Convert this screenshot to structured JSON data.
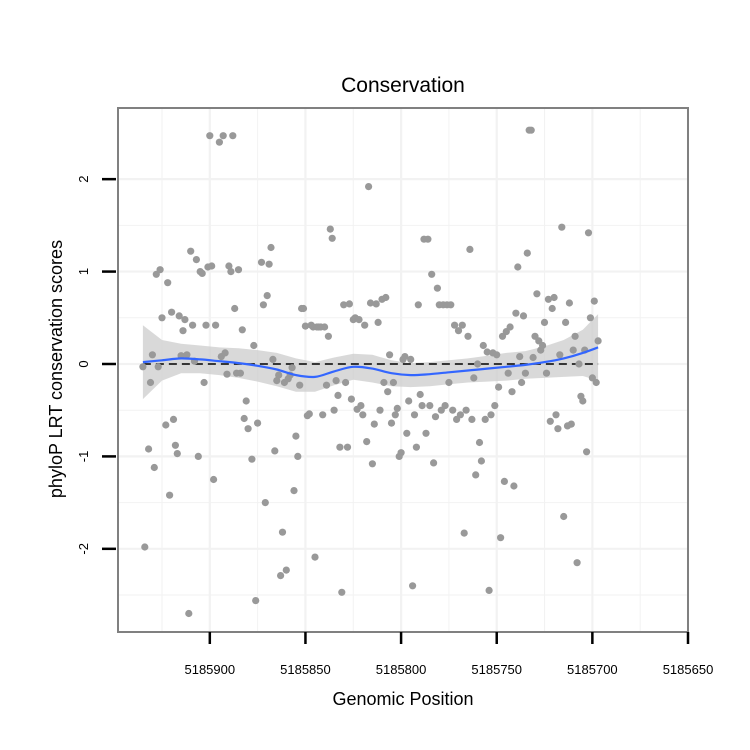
{
  "chart_data": {
    "type": "scatter",
    "title": "Conservation",
    "xlabel": "Genomic Position",
    "ylabel": "phyloP LRT conservation scores",
    "x_reversed": true,
    "xlim": [
      5185650,
      5185948
    ],
    "ylim": [
      -2.9,
      2.77
    ],
    "x_ticks": [
      5185900,
      5185850,
      5185800,
      5185750,
      5185700,
      5185650
    ],
    "x_tick_labels": [
      "5185900",
      "5185850",
      "5185800",
      "5185750",
      "5185700",
      "5185650"
    ],
    "y_ticks": [
      2,
      1,
      0,
      -1,
      -2
    ],
    "y_tick_labels": [
      "2",
      "1",
      "0",
      "-1",
      "-2"
    ],
    "grid": true,
    "reference_line": {
      "y": 0,
      "style": "dashed"
    },
    "colors": {
      "points": "#999999",
      "smooth": "#3366ff",
      "band": "#cccccc",
      "panel_border": "#808080",
      "grid": "#f2f2f2"
    },
    "points": [
      [
        5185935,
        -0.03
      ],
      [
        5185934,
        -1.98
      ],
      [
        5185932,
        -0.92
      ],
      [
        5185931,
        -0.2
      ],
      [
        5185930,
        0.1
      ],
      [
        5185929,
        -1.12
      ],
      [
        5185928,
        0.97
      ],
      [
        5185927,
        -0.03
      ],
      [
        5185926,
        1.02
      ],
      [
        5185925,
        0.5
      ],
      [
        5185923,
        -0.66
      ],
      [
        5185922,
        0.88
      ],
      [
        5185921,
        -1.42
      ],
      [
        5185920,
        0.56
      ],
      [
        5185919,
        -0.6
      ],
      [
        5185918,
        -0.88
      ],
      [
        5185917,
        -0.97
      ],
      [
        5185916,
        0.52
      ],
      [
        5185915,
        0.09
      ],
      [
        5185914,
        0.36
      ],
      [
        5185913,
        0.48
      ],
      [
        5185912,
        0.1
      ],
      [
        5185911,
        -2.7
      ],
      [
        5185910,
        1.22
      ],
      [
        5185909,
        0.42
      ],
      [
        5185908,
        0.03
      ],
      [
        5185907,
        1.13
      ],
      [
        5185906,
        -1.0
      ],
      [
        5185905,
        1.0
      ],
      [
        5185904,
        0.98
      ],
      [
        5185903,
        -0.2
      ],
      [
        5185902,
        0.42
      ],
      [
        5185901,
        1.05
      ],
      [
        5185900,
        2.47
      ],
      [
        5185899,
        1.06
      ],
      [
        5185898,
        -1.25
      ],
      [
        5185897,
        0.42
      ],
      [
        5185895,
        2.4
      ],
      [
        5185894,
        0.08
      ],
      [
        5185893,
        2.47
      ],
      [
        5185892,
        0.12
      ],
      [
        5185891,
        -0.11
      ],
      [
        5185890,
        1.06
      ],
      [
        5185889,
        1.0
      ],
      [
        5185888,
        2.47
      ],
      [
        5185887,
        0.6
      ],
      [
        5185886,
        -0.1
      ],
      [
        5185885,
        1.02
      ],
      [
        5185884,
        -0.1
      ],
      [
        5185883,
        0.37
      ],
      [
        5185882,
        -0.59
      ],
      [
        5185881,
        -0.4
      ],
      [
        5185880,
        -0.7
      ],
      [
        5185878,
        -1.03
      ],
      [
        5185877,
        0.2
      ],
      [
        5185876,
        -2.56
      ],
      [
        5185875,
        -0.64
      ],
      [
        5185873,
        1.1
      ],
      [
        5185872,
        0.64
      ],
      [
        5185871,
        -1.5
      ],
      [
        5185870,
        0.74
      ],
      [
        5185869,
        1.08
      ],
      [
        5185868,
        1.26
      ],
      [
        5185867,
        0.05
      ],
      [
        5185866,
        -0.94
      ],
      [
        5185865,
        -0.18
      ],
      [
        5185864,
        -0.12
      ],
      [
        5185863,
        -2.29
      ],
      [
        5185862,
        -1.82
      ],
      [
        5185861,
        -0.2
      ],
      [
        5185860,
        -2.23
      ],
      [
        5185859,
        -0.16
      ],
      [
        5185858,
        -0.12
      ],
      [
        5185857,
        -0.04
      ],
      [
        5185856,
        -1.37
      ],
      [
        5185855,
        -0.78
      ],
      [
        5185854,
        -1.0
      ],
      [
        5185853,
        -0.23
      ],
      [
        5185852,
        0.6
      ],
      [
        5185851,
        0.6
      ],
      [
        5185850,
        0.41
      ],
      [
        5185849,
        -0.56
      ],
      [
        5185848,
        -0.54
      ],
      [
        5185847,
        0.42
      ],
      [
        5185846,
        0.4
      ],
      [
        5185845,
        -2.09
      ],
      [
        5185844,
        0.4
      ],
      [
        5185843,
        0.4
      ],
      [
        5185842,
        0.4
      ],
      [
        5185841,
        -0.55
      ],
      [
        5185840,
        0.4
      ],
      [
        5185839,
        -0.23
      ],
      [
        5185838,
        0.3
      ],
      [
        5185837,
        1.46
      ],
      [
        5185836,
        1.36
      ],
      [
        5185835,
        -0.5
      ],
      [
        5185834,
        -0.18
      ],
      [
        5185833,
        -0.34
      ],
      [
        5185832,
        -0.9
      ],
      [
        5185831,
        -2.47
      ],
      [
        5185830,
        0.64
      ],
      [
        5185829,
        -0.2
      ],
      [
        5185828,
        -0.9
      ],
      [
        5185827,
        0.65
      ],
      [
        5185826,
        -0.38
      ],
      [
        5185825,
        0.48
      ],
      [
        5185824,
        0.5
      ],
      [
        5185823,
        -0.49
      ],
      [
        5185822,
        0.48
      ],
      [
        5185821,
        -0.45
      ],
      [
        5185820,
        -0.55
      ],
      [
        5185819,
        0.42
      ],
      [
        5185818,
        -0.84
      ],
      [
        5185817,
        1.92
      ],
      [
        5185816,
        0.66
      ],
      [
        5185815,
        -1.08
      ],
      [
        5185814,
        -0.65
      ],
      [
        5185813,
        0.65
      ],
      [
        5185812,
        0.45
      ],
      [
        5185811,
        -0.5
      ],
      [
        5185810,
        0.7
      ],
      [
        5185809,
        -0.2
      ],
      [
        5185808,
        0.72
      ],
      [
        5185807,
        -0.3
      ],
      [
        5185806,
        0.1
      ],
      [
        5185805,
        -0.64
      ],
      [
        5185804,
        -0.2
      ],
      [
        5185803,
        -0.55
      ],
      [
        5185802,
        -0.48
      ],
      [
        5185801,
        -1.0
      ],
      [
        5185800,
        -0.96
      ],
      [
        5185799,
        0.05
      ],
      [
        5185798,
        0.08
      ],
      [
        5185797,
        -0.75
      ],
      [
        5185796,
        -0.4
      ],
      [
        5185795,
        0.05
      ],
      [
        5185794,
        -2.4
      ],
      [
        5185793,
        -0.55
      ],
      [
        5185792,
        -0.9
      ],
      [
        5185791,
        0.64
      ],
      [
        5185790,
        -0.33
      ],
      [
        5185789,
        -0.45
      ],
      [
        5185788,
        1.35
      ],
      [
        5185787,
        -0.75
      ],
      [
        5185786,
        1.35
      ],
      [
        5185785,
        -0.45
      ],
      [
        5185784,
        0.97
      ],
      [
        5185783,
        -1.07
      ],
      [
        5185782,
        -0.57
      ],
      [
        5185781,
        0.82
      ],
      [
        5185780,
        0.64
      ],
      [
        5185779,
        -0.5
      ],
      [
        5185778,
        0.64
      ],
      [
        5185777,
        -0.45
      ],
      [
        5185776,
        0.64
      ],
      [
        5185775,
        -0.2
      ],
      [
        5185774,
        0.64
      ],
      [
        5185773,
        -0.5
      ],
      [
        5185772,
        0.42
      ],
      [
        5185771,
        -0.6
      ],
      [
        5185770,
        0.36
      ],
      [
        5185769,
        -0.55
      ],
      [
        5185768,
        0.42
      ],
      [
        5185767,
        -1.83
      ],
      [
        5185766,
        -0.5
      ],
      [
        5185765,
        0.3
      ],
      [
        5185764,
        1.24
      ],
      [
        5185763,
        -0.6
      ],
      [
        5185762,
        -0.15
      ],
      [
        5185761,
        -1.2
      ],
      [
        5185760,
        0.0
      ],
      [
        5185759,
        -0.85
      ],
      [
        5185758,
        -1.05
      ],
      [
        5185757,
        0.2
      ],
      [
        5185756,
        -0.6
      ],
      [
        5185755,
        0.13
      ],
      [
        5185754,
        -2.45
      ],
      [
        5185753,
        -0.55
      ],
      [
        5185752,
        0.12
      ],
      [
        5185751,
        -0.45
      ],
      [
        5185750,
        0.1
      ],
      [
        5185749,
        -0.25
      ],
      [
        5185748,
        -1.88
      ],
      [
        5185747,
        0.3
      ],
      [
        5185746,
        -1.27
      ],
      [
        5185745,
        0.35
      ],
      [
        5185744,
        -0.1
      ],
      [
        5185743,
        0.4
      ],
      [
        5185742,
        -0.3
      ],
      [
        5185741,
        -1.32
      ],
      [
        5185740,
        0.55
      ],
      [
        5185739,
        1.05
      ],
      [
        5185738,
        0.08
      ],
      [
        5185737,
        -0.2
      ],
      [
        5185736,
        0.52
      ],
      [
        5185735,
        -0.1
      ],
      [
        5185734,
        1.2
      ],
      [
        5185733,
        2.53
      ],
      [
        5185732,
        2.53
      ],
      [
        5185731,
        0.07
      ],
      [
        5185730,
        0.3
      ],
      [
        5185729,
        0.76
      ],
      [
        5185728,
        0.25
      ],
      [
        5185727,
        0.15
      ],
      [
        5185726,
        0.2
      ],
      [
        5185725,
        0.45
      ],
      [
        5185724,
        -0.1
      ],
      [
        5185723,
        0.7
      ],
      [
        5185722,
        -0.62
      ],
      [
        5185721,
        0.6
      ],
      [
        5185720,
        0.72
      ],
      [
        5185719,
        -0.55
      ],
      [
        5185718,
        -0.7
      ],
      [
        5185717,
        0.1
      ],
      [
        5185716,
        1.48
      ],
      [
        5185715,
        -1.65
      ],
      [
        5185714,
        0.45
      ],
      [
        5185713,
        -0.67
      ],
      [
        5185712,
        0.66
      ],
      [
        5185711,
        -0.65
      ],
      [
        5185710,
        0.15
      ],
      [
        5185709,
        0.3
      ],
      [
        5185708,
        -2.15
      ],
      [
        5185707,
        0.0
      ],
      [
        5185706,
        -0.35
      ],
      [
        5185705,
        -0.4
      ],
      [
        5185704,
        0.15
      ],
      [
        5185703,
        -0.95
      ],
      [
        5185702,
        1.42
      ],
      [
        5185701,
        0.5
      ],
      [
        5185700,
        -0.15
      ],
      [
        5185699,
        0.68
      ],
      [
        5185698,
        -0.2
      ],
      [
        5185697,
        0.25
      ]
    ],
    "smooth": {
      "name": "",
      "x": [
        5185935,
        5185925,
        5185915,
        5185905,
        5185895,
        5185885,
        5185875,
        5185865,
        5185855,
        5185845,
        5185835,
        5185825,
        5185815,
        5185805,
        5185795,
        5185785,
        5185775,
        5185765,
        5185755,
        5185745,
        5185735,
        5185725,
        5185715,
        5185705,
        5185697
      ],
      "y": [
        0.02,
        0.04,
        0.06,
        0.05,
        0.03,
        0.01,
        -0.02,
        -0.06,
        -0.12,
        -0.14,
        -0.08,
        -0.03,
        -0.05,
        -0.1,
        -0.12,
        -0.11,
        -0.09,
        -0.07,
        -0.05,
        -0.03,
        -0.01,
        0.02,
        0.06,
        0.12,
        0.18
      ],
      "lower": [
        -0.38,
        -0.18,
        -0.1,
        -0.1,
        -0.12,
        -0.15,
        -0.19,
        -0.24,
        -0.3,
        -0.3,
        -0.23,
        -0.17,
        -0.2,
        -0.24,
        -0.25,
        -0.24,
        -0.22,
        -0.2,
        -0.19,
        -0.18,
        -0.16,
        -0.15,
        -0.14,
        -0.13,
        -0.18
      ],
      "upper": [
        0.42,
        0.26,
        0.22,
        0.2,
        0.18,
        0.17,
        0.15,
        0.12,
        0.06,
        0.02,
        0.07,
        0.11,
        0.1,
        0.04,
        0.01,
        0.02,
        0.04,
        0.06,
        0.09,
        0.12,
        0.14,
        0.19,
        0.26,
        0.37,
        0.54
      ]
    }
  }
}
